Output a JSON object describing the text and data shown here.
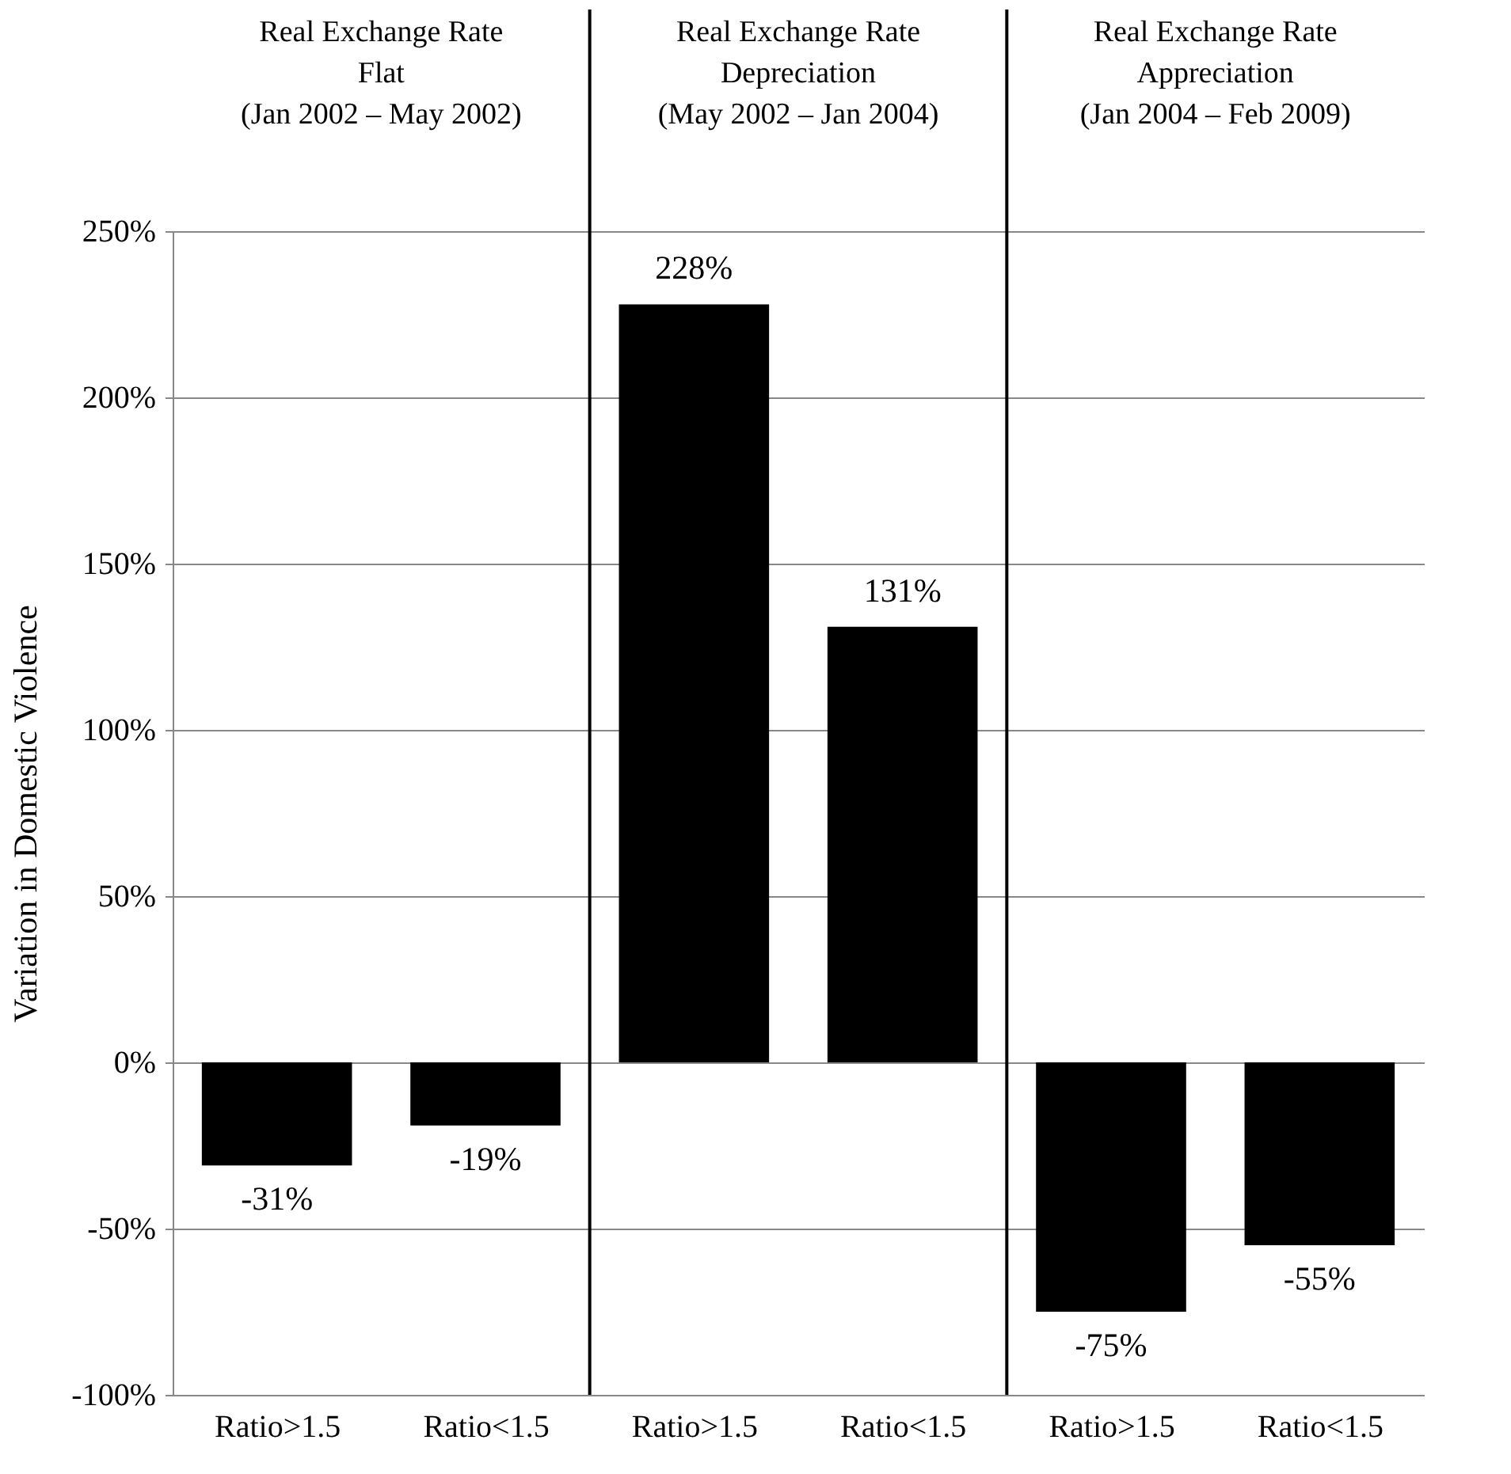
{
  "chart_data": {
    "type": "bar",
    "ylabel": "Variation  in Domestic Violence",
    "categories": [
      "Ratio>1.5",
      "Ratio<1.5",
      "Ratio>1.5",
      "Ratio<1.5",
      "Ratio>1.5",
      "Ratio<1.5"
    ],
    "values": [
      -31,
      -19,
      228,
      131,
      -75,
      -55
    ],
    "value_labels": [
      "-31%",
      "-19%",
      "228%",
      "131%",
      "-75%",
      "-55%"
    ],
    "color": "#000000",
    "ylim": [
      -100,
      250
    ],
    "yticks": [
      {
        "value": -100,
        "label": "-100%"
      },
      {
        "value": -50,
        "label": "-50%"
      },
      {
        "value": 0,
        "label": "0%"
      },
      {
        "value": 50,
        "label": "50%"
      },
      {
        "value": 100,
        "label": "100%"
      },
      {
        "value": 150,
        "label": "150%"
      },
      {
        "value": 200,
        "label": "200%"
      },
      {
        "value": 250,
        "label": "250%"
      }
    ],
    "grid": "y",
    "annotations": [
      "Real Exchange Rate\nFlat\n(Jan 2002 –  May 2002)",
      "Real Exchange Rate\nDepreciation\n(May 2002 – Jan 2004)",
      "Real Exchange Rate\nAppreciation\n(Jan 2004 – Feb 2009)"
    ]
  }
}
